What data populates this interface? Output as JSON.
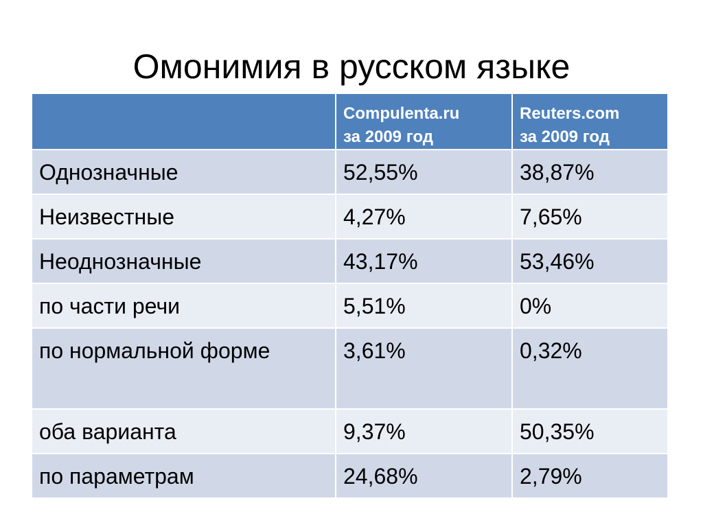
{
  "slide": {
    "title": "Омонимия в русском языке"
  },
  "table": {
    "header": {
      "label": "",
      "col_a_line1": "Compulenta.ru",
      "col_a_line2": "за 2009 год",
      "col_b_line1": "Reuters.com",
      "col_b_line2": "за 2009 год"
    },
    "rows": [
      {
        "label": "Однозначные",
        "a": "52,55%",
        "b": "38,87%"
      },
      {
        "label": "Неизвестные",
        "a": "4,27%",
        "b": "7,65%"
      },
      {
        "label": "Неоднозначные",
        "a": "43,17%",
        "b": "53,46%"
      },
      {
        "label": "по части речи",
        "a": "5,51%",
        "b": "0%"
      },
      {
        "label": "по нормальной форме",
        "a": "3,61%",
        "b": "0,32%"
      },
      {
        "label": "оба варианта",
        "a": "9,37%",
        "b": "50,35%"
      },
      {
        "label": "по параметрам",
        "a": "24,68%",
        "b": "2,79%"
      }
    ]
  },
  "colors": {
    "header_bg": "#4f81bd",
    "row_odd_bg": "#d0d8e8",
    "row_even_bg": "#e9edf4"
  }
}
